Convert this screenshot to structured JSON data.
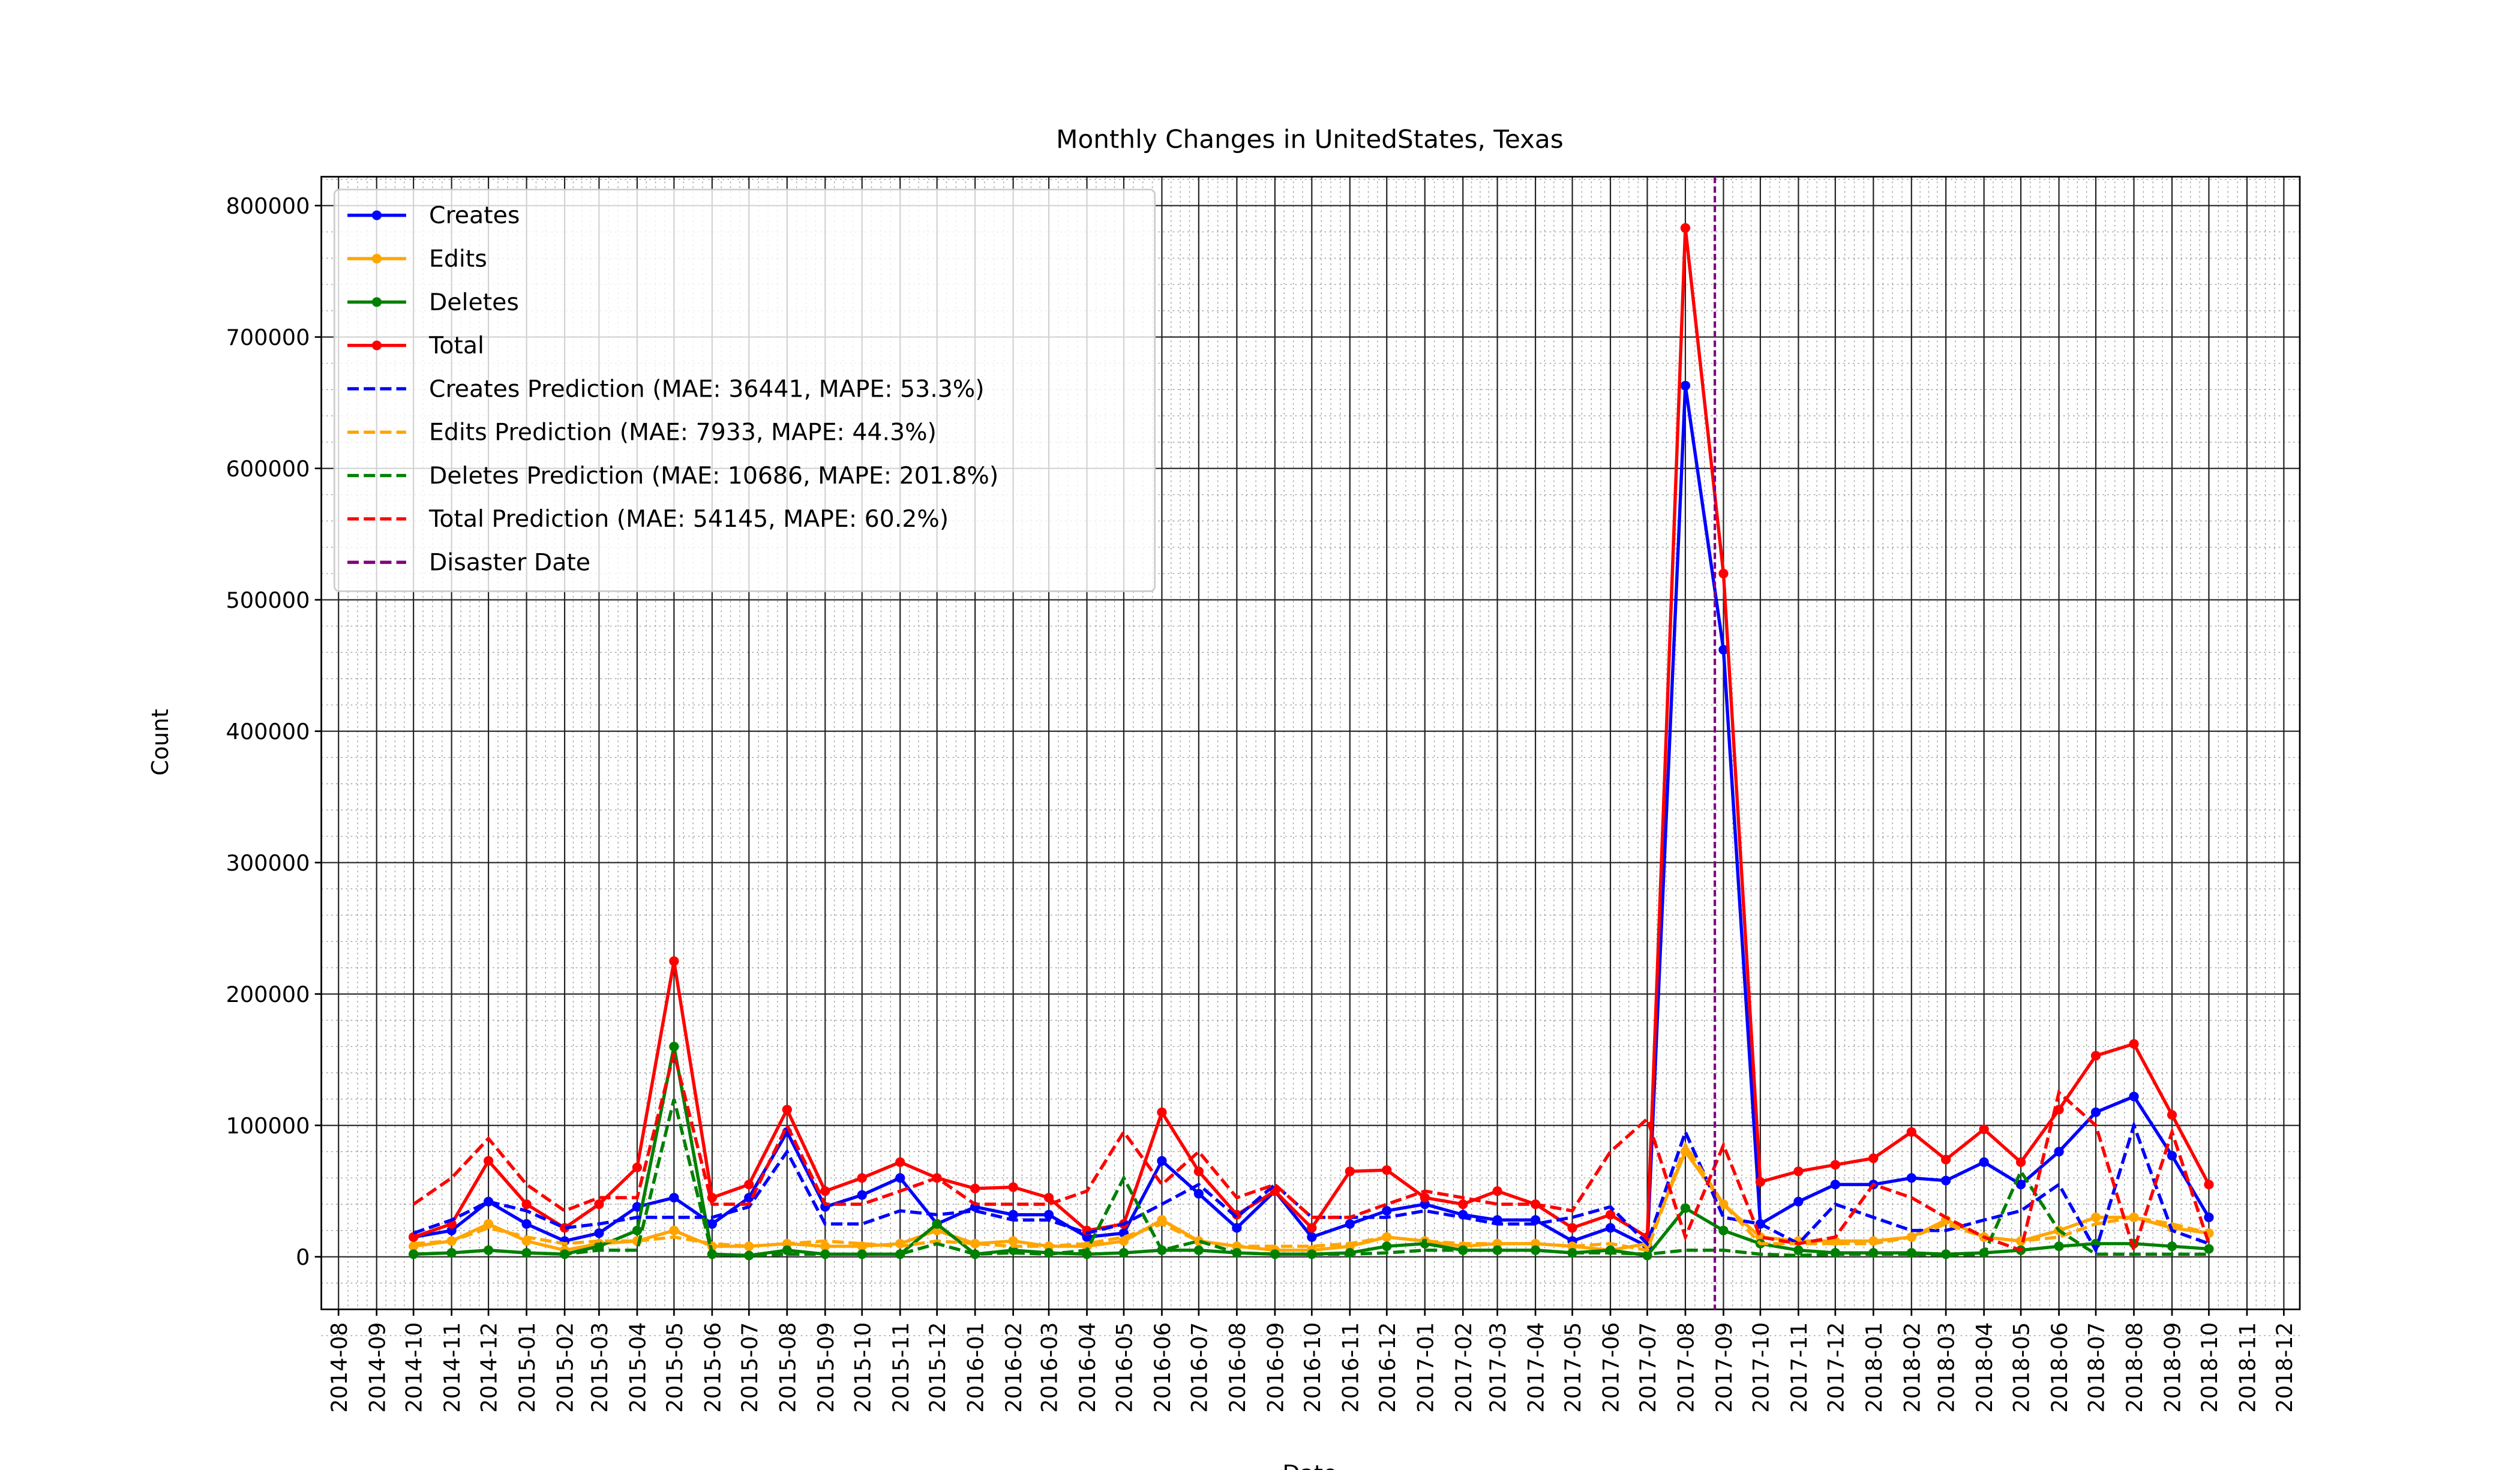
{
  "chart_data": {
    "type": "line",
    "title": "Monthly Changes in UnitedStates, Texas",
    "xlabel": "Date",
    "ylabel": "Count",
    "x": [
      "2014-10",
      "2014-11",
      "2014-12",
      "2015-01",
      "2015-02",
      "2015-03",
      "2015-04",
      "2015-05",
      "2015-06",
      "2015-07",
      "2015-08",
      "2015-09",
      "2015-10",
      "2015-11",
      "2015-12",
      "2016-01",
      "2016-02",
      "2016-03",
      "2016-04",
      "2016-05",
      "2016-06",
      "2016-07",
      "2016-08",
      "2016-09",
      "2016-10",
      "2016-11",
      "2016-12",
      "2017-01",
      "2017-02",
      "2017-03",
      "2017-04",
      "2017-05",
      "2017-06",
      "2017-07",
      "2017-08",
      "2017-09",
      "2017-10",
      "2017-11",
      "2017-12",
      "2018-01",
      "2018-02",
      "2018-03",
      "2018-04",
      "2018-05",
      "2018-06",
      "2018-07",
      "2018-08",
      "2018-09",
      "2018-10"
    ],
    "series": [
      {
        "name": "Creates",
        "color": "#0000ff",
        "linestyle": "solid",
        "marker": true,
        "values": [
          15000,
          20000,
          42000,
          25000,
          12000,
          18000,
          38000,
          45000,
          25000,
          45000,
          95000,
          38000,
          47000,
          60000,
          25000,
          38000,
          32000,
          32000,
          15000,
          18000,
          73000,
          48000,
          22000,
          50000,
          15000,
          25000,
          35000,
          40000,
          32000,
          28000,
          28000,
          12000,
          22000,
          8000,
          663000,
          462000,
          25000,
          42000,
          55000,
          55000,
          60000,
          58000,
          72000,
          55000,
          80000,
          110000,
          122000,
          77000,
          30000
        ]
      },
      {
        "name": "Edits",
        "color": "#ffa500",
        "linestyle": "solid",
        "marker": true,
        "values": [
          8000,
          12000,
          25000,
          12000,
          5000,
          10000,
          12000,
          20000,
          8000,
          8000,
          10000,
          8000,
          8000,
          10000,
          20000,
          10000,
          12000,
          8000,
          8000,
          12000,
          28000,
          12000,
          8000,
          5000,
          5000,
          8000,
          15000,
          12000,
          8000,
          10000,
          10000,
          8000,
          5000,
          10000,
          80000,
          40000,
          15000,
          12000,
          12000,
          12000,
          15000,
          28000,
          15000,
          12000,
          20000,
          30000,
          30000,
          22000,
          18000
        ]
      },
      {
        "name": "Deletes",
        "color": "#008000",
        "linestyle": "solid",
        "marker": true,
        "values": [
          2000,
          3000,
          5000,
          3000,
          2000,
          8000,
          20000,
          160000,
          2000,
          1000,
          5000,
          2000,
          2000,
          2000,
          25000,
          2000,
          5000,
          3000,
          2000,
          3000,
          5000,
          5000,
          3000,
          2000,
          2000,
          3000,
          8000,
          10000,
          5000,
          5000,
          5000,
          3000,
          5000,
          1000,
          37000,
          20000,
          10000,
          5000,
          3000,
          3000,
          3000,
          2000,
          3000,
          5000,
          8000,
          10000,
          10000,
          8000,
          6000
        ]
      },
      {
        "name": "Total",
        "color": "#ff0000",
        "linestyle": "solid",
        "marker": true,
        "values": [
          15000,
          25000,
          73000,
          40000,
          22000,
          40000,
          68000,
          225000,
          45000,
          55000,
          112000,
          50000,
          60000,
          72000,
          60000,
          52000,
          53000,
          45000,
          20000,
          25000,
          110000,
          65000,
          32000,
          50000,
          22000,
          65000,
          66000,
          45000,
          40000,
          50000,
          40000,
          22000,
          32000,
          15000,
          783000,
          520000,
          57000,
          65000,
          70000,
          75000,
          95000,
          74000,
          97000,
          72000,
          112000,
          153000,
          162000,
          108000,
          55000
        ]
      },
      {
        "name": "Creates Prediction (MAE: 36441, MAPE: 53.3%)",
        "color": "#0000ff",
        "linestyle": "dashed",
        "marker": false,
        "values": [
          18000,
          28000,
          42000,
          35000,
          22000,
          25000,
          30000,
          30000,
          30000,
          38000,
          80000,
          25000,
          25000,
          35000,
          32000,
          35000,
          28000,
          28000,
          18000,
          25000,
          40000,
          55000,
          30000,
          55000,
          30000,
          30000,
          30000,
          35000,
          30000,
          25000,
          25000,
          30000,
          38000,
          10000,
          95000,
          30000,
          25000,
          10000,
          40000,
          30000,
          20000,
          20000,
          28000,
          35000,
          55000,
          5000,
          100000,
          20000,
          10000
        ]
      },
      {
        "name": "Edits Prediction (MAE: 7933, MAPE: 44.3%)",
        "color": "#ffa500",
        "linestyle": "dashed",
        "marker": false,
        "values": [
          10000,
          12000,
          22000,
          15000,
          10000,
          12000,
          12000,
          15000,
          10000,
          8000,
          10000,
          12000,
          10000,
          8000,
          12000,
          10000,
          8000,
          8000,
          10000,
          15000,
          25000,
          12000,
          8000,
          8000,
          8000,
          10000,
          15000,
          12000,
          10000,
          10000,
          10000,
          8000,
          10000,
          5000,
          85000,
          40000,
          10000,
          10000,
          10000,
          10000,
          15000,
          25000,
          15000,
          12000,
          15000,
          25000,
          30000,
          25000,
          18000
        ]
      },
      {
        "name": "Deletes Prediction (MAE: 10686, MAPE: 201.8%)",
        "color": "#008000",
        "linestyle": "dashed",
        "marker": false,
        "values": [
          2000,
          3000,
          5000,
          3000,
          2000,
          5000,
          5000,
          120000,
          2000,
          1000,
          2000,
          2000,
          2000,
          2000,
          10000,
          2000,
          3000,
          2000,
          5000,
          60000,
          5000,
          12000,
          3000,
          2000,
          2000,
          2000,
          3000,
          5000,
          5000,
          5000,
          5000,
          3000,
          3000,
          2000,
          5000,
          5000,
          2000,
          1000,
          2000,
          2000,
          2000,
          1000,
          2000,
          65000,
          20000,
          2000,
          2000,
          2000,
          2000
        ]
      },
      {
        "name": "Total Prediction (MAE: 54145, MAPE: 60.2%)",
        "color": "#ff0000",
        "linestyle": "dashed",
        "marker": false,
        "values": [
          40000,
          60000,
          90000,
          55000,
          35000,
          45000,
          45000,
          155000,
          40000,
          40000,
          100000,
          40000,
          40000,
          50000,
          60000,
          40000,
          40000,
          40000,
          50000,
          95000,
          55000,
          80000,
          45000,
          55000,
          30000,
          30000,
          40000,
          50000,
          45000,
          40000,
          40000,
          35000,
          80000,
          105000,
          15000,
          85000,
          15000,
          10000,
          15000,
          55000,
          45000,
          30000,
          15000,
          5000,
          125000,
          100000,
          5000,
          95000,
          10000
        ]
      }
    ],
    "vline": {
      "name": "Disaster Date",
      "color": "#800080",
      "x": "2017-08-25"
    },
    "xlim": [
      "2014-07-18",
      "2018-12-14"
    ],
    "xticks": [
      "2014-08",
      "2014-09",
      "2014-10",
      "2014-11",
      "2014-12",
      "2015-01",
      "2015-02",
      "2015-03",
      "2015-04",
      "2015-05",
      "2015-06",
      "2015-07",
      "2015-08",
      "2015-09",
      "2015-10",
      "2015-11",
      "2015-12",
      "2016-01",
      "2016-02",
      "2016-03",
      "2016-04",
      "2016-05",
      "2016-06",
      "2016-07",
      "2016-08",
      "2016-09",
      "2016-10",
      "2016-11",
      "2016-12",
      "2017-01",
      "2017-02",
      "2017-03",
      "2017-04",
      "2017-05",
      "2017-06",
      "2017-07",
      "2017-08",
      "2017-09",
      "2017-10",
      "2017-11",
      "2017-12",
      "2018-01",
      "2018-02",
      "2018-03",
      "2018-04",
      "2018-05",
      "2018-06",
      "2018-07",
      "2018-08",
      "2018-09",
      "2018-10",
      "2018-11",
      "2018-12"
    ],
    "ylim": [
      -40000,
      822000
    ],
    "yticks": [
      0,
      100000,
      200000,
      300000,
      400000,
      500000,
      600000,
      700000,
      800000
    ],
    "grid": true,
    "legend": "upper left"
  }
}
